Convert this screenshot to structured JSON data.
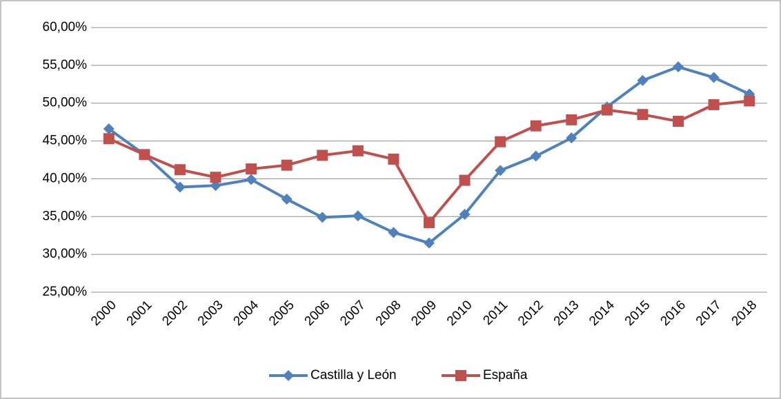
{
  "chart_data": {
    "type": "line",
    "categories": [
      "2000",
      "2001",
      "2002",
      "2003",
      "2004",
      "2005",
      "2006",
      "2007",
      "2008",
      "2009",
      "2010",
      "2011",
      "2012",
      "2013",
      "2014",
      "2015",
      "2016",
      "2017",
      "2018"
    ],
    "series": [
      {
        "name": "Castilla y León",
        "color": "#4f81bd",
        "marker": "diamond",
        "values": [
          46.6,
          43.2,
          38.9,
          39.1,
          39.9,
          37.3,
          34.9,
          35.1,
          32.9,
          31.5,
          35.3,
          41.1,
          43.0,
          45.4,
          49.5,
          53.0,
          54.8,
          53.4,
          51.2
        ]
      },
      {
        "name": "España",
        "color": "#c0504d",
        "marker": "square",
        "values": [
          45.3,
          43.2,
          41.2,
          40.2,
          41.3,
          41.8,
          43.1,
          43.7,
          42.6,
          34.2,
          39.8,
          44.9,
          47.0,
          47.8,
          49.1,
          48.5,
          47.6,
          49.8,
          50.3
        ]
      }
    ],
    "ylim": [
      25,
      60
    ],
    "yticks": [
      {
        "value": 25,
        "label": "25,00%"
      },
      {
        "value": 30,
        "label": "30,00%"
      },
      {
        "value": 35,
        "label": "35,00%"
      },
      {
        "value": 40,
        "label": "40,00%"
      },
      {
        "value": 45,
        "label": "45,00%"
      },
      {
        "value": 50,
        "label": "50,00%"
      },
      {
        "value": 55,
        "label": "55,00%"
      },
      {
        "value": 60,
        "label": "60,00%"
      }
    ],
    "grid": true,
    "legend": "bottom"
  }
}
